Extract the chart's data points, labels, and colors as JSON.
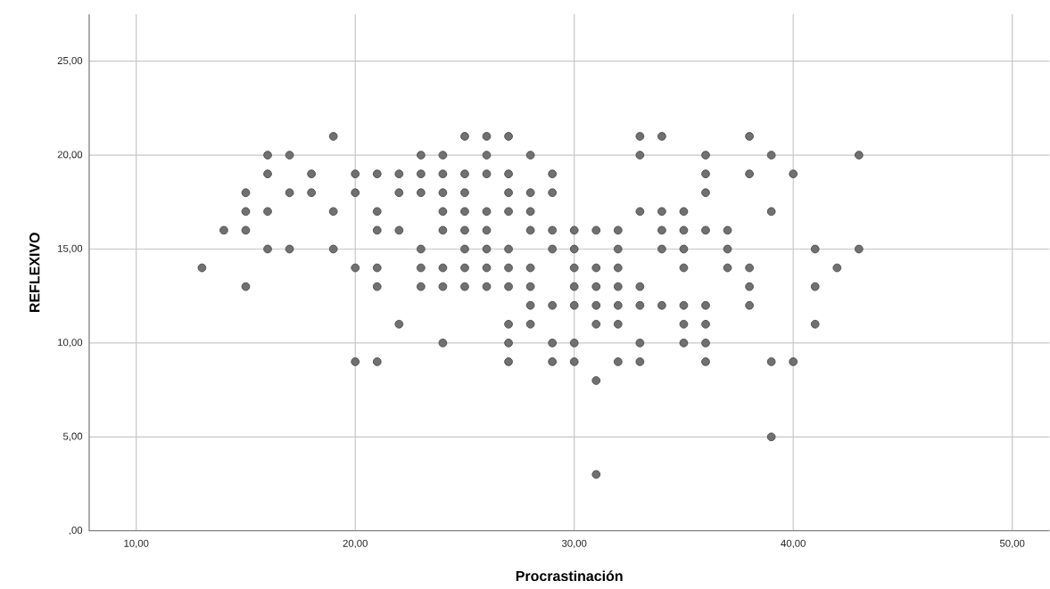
{
  "chart_data": {
    "type": "scatter",
    "xlabel": "Procrastinación",
    "ylabel": "REFLEXIVO",
    "xlim": [
      7.85,
      51.7
    ],
    "ylim": [
      0,
      27.5
    ],
    "xticks": [
      {
        "value": 10,
        "label": "10,00"
      },
      {
        "value": 20,
        "label": "20,00"
      },
      {
        "value": 30,
        "label": "30,00"
      },
      {
        "value": 40,
        "label": "40,00"
      },
      {
        "value": 50,
        "label": "50,00"
      }
    ],
    "yticks": [
      {
        "value": 0,
        "label": ",00"
      },
      {
        "value": 5,
        "label": "5,00"
      },
      {
        "value": 10,
        "label": "10,00"
      },
      {
        "value": 15,
        "label": "15,00"
      },
      {
        "value": 20,
        "label": "20,00"
      },
      {
        "value": 25,
        "label": "25,00"
      }
    ],
    "grid": true,
    "marker": "circle",
    "color": "#707070",
    "x": [
      13,
      14,
      15,
      15,
      15,
      15,
      16,
      16,
      16,
      16,
      17,
      17,
      17,
      18,
      18,
      19,
      19,
      19,
      20,
      20,
      20,
      20,
      21,
      21,
      21,
      21,
      21,
      21,
      22,
      22,
      22,
      22,
      23,
      23,
      23,
      23,
      23,
      23,
      24,
      24,
      24,
      24,
      24,
      24,
      24,
      24,
      25,
      25,
      25,
      25,
      25,
      25,
      25,
      25,
      26,
      26,
      26,
      26,
      26,
      26,
      26,
      26,
      27,
      27,
      27,
      27,
      27,
      27,
      27,
      27,
      27,
      27,
      28,
      28,
      28,
      28,
      28,
      28,
      28,
      28,
      29,
      29,
      29,
      29,
      29,
      29,
      29,
      30,
      30,
      30,
      30,
      30,
      30,
      30,
      31,
      31,
      31,
      31,
      31,
      31,
      31,
      32,
      32,
      32,
      32,
      32,
      32,
      32,
      33,
      33,
      33,
      33,
      33,
      33,
      33,
      34,
      34,
      34,
      34,
      34,
      35,
      35,
      35,
      35,
      35,
      35,
      35,
      36,
      36,
      36,
      36,
      36,
      36,
      36,
      36,
      37,
      37,
      37,
      38,
      38,
      38,
      38,
      38,
      39,
      39,
      39,
      39,
      40,
      40,
      41,
      41,
      41,
      42,
      43,
      43
    ],
    "values": [
      14,
      16,
      18,
      17,
      16,
      13,
      20,
      19,
      17,
      15,
      20,
      18,
      15,
      19,
      18,
      21,
      17,
      15,
      19,
      18,
      14,
      9,
      19,
      17,
      16,
      14,
      13,
      9,
      19,
      18,
      16,
      11,
      20,
      19,
      18,
      15,
      14,
      13,
      20,
      19,
      18,
      17,
      16,
      14,
      13,
      10,
      21,
      19,
      18,
      17,
      16,
      15,
      14,
      13,
      21,
      20,
      19,
      17,
      16,
      15,
      14,
      13,
      21,
      19,
      18,
      17,
      15,
      14,
      13,
      11,
      10,
      9,
      20,
      18,
      17,
      16,
      14,
      13,
      12,
      11,
      19,
      18,
      16,
      15,
      12,
      10,
      9,
      16,
      15,
      14,
      13,
      12,
      10,
      9,
      16,
      14,
      13,
      12,
      11,
      8,
      3,
      16,
      15,
      14,
      13,
      12,
      11,
      9,
      21,
      20,
      17,
      13,
      12,
      10,
      9,
      21,
      17,
      16,
      15,
      12,
      17,
      16,
      15,
      14,
      12,
      11,
      10,
      20,
      19,
      18,
      16,
      12,
      11,
      10,
      9,
      16,
      15,
      14,
      21,
      19,
      14,
      13,
      12,
      20,
      17,
      9,
      5,
      19,
      9,
      15,
      13,
      11,
      14,
      20,
      15
    ]
  }
}
